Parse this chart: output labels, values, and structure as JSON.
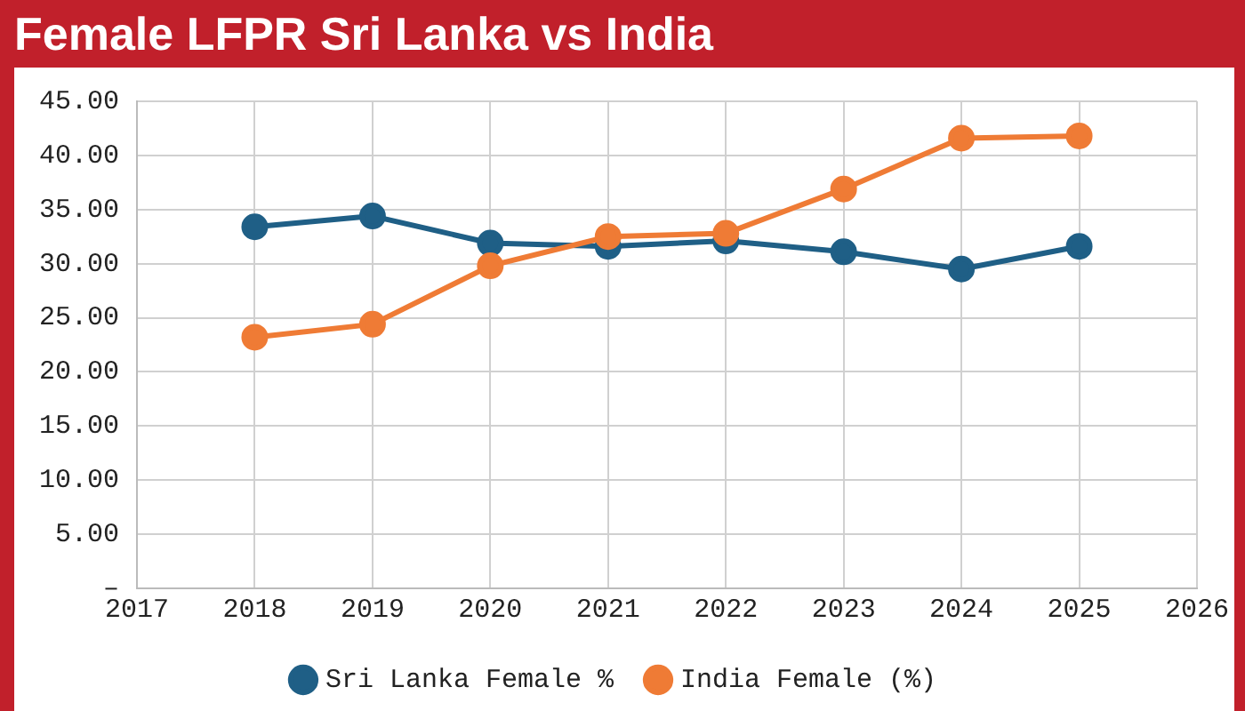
{
  "chart_data": {
    "type": "line",
    "title": "Female LFPR Sri Lanka vs India",
    "x": [
      2018,
      2019,
      2020,
      2021,
      2022,
      2023,
      2024,
      2025
    ],
    "series": [
      {
        "name": "Sri Lanka Female %",
        "color": "#1f5f86",
        "values": [
          33.4,
          34.4,
          31.9,
          31.6,
          32.1,
          31.1,
          29.5,
          31.6
        ]
      },
      {
        "name": "India Female (%)",
        "color": "#ef7b35",
        "values": [
          23.2,
          24.4,
          29.8,
          32.5,
          32.8,
          36.9,
          41.6,
          41.8
        ]
      }
    ],
    "xlim": [
      2017,
      2026
    ],
    "xticks": [
      2017,
      2018,
      2019,
      2020,
      2021,
      2022,
      2023,
      2024,
      2025,
      2026
    ],
    "ylim": [
      0,
      45
    ],
    "yticks": [
      {
        "value": 0,
        "label": "–"
      },
      {
        "value": 5,
        "label": "5.00"
      },
      {
        "value": 10,
        "label": "10.00"
      },
      {
        "value": 15,
        "label": "15.00"
      },
      {
        "value": 20,
        "label": "20.00"
      },
      {
        "value": 25,
        "label": "25.00"
      },
      {
        "value": 30,
        "label": "30.00"
      },
      {
        "value": 35,
        "label": "35.00"
      },
      {
        "value": 40,
        "label": "40.00"
      },
      {
        "value": 45,
        "label": "45.00"
      }
    ],
    "grid": true,
    "legend": "bottom",
    "marker": "circle",
    "line_style": "solid"
  }
}
